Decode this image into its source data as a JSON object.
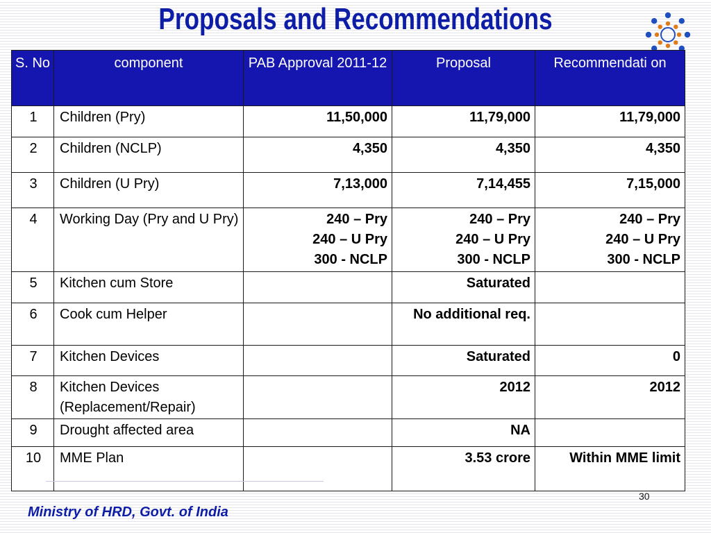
{
  "title": "Proposals and Recommendations",
  "table": {
    "headers": {
      "sno": "S. No",
      "component": "component",
      "pab": "PAB Approval 2011-12",
      "proposal": "Proposal",
      "recommendation": "Recommendati on"
    },
    "rows": [
      {
        "sno": "1",
        "component": "Children (Pry)",
        "pab": "11,50,000",
        "proposal": "11,79,000",
        "recommendation": "11,79,000"
      },
      {
        "sno": "2",
        "component": "Children (NCLP)",
        "pab": "4,350",
        "proposal": "4,350",
        "recommendation": "4,350"
      },
      {
        "sno": "3",
        "component": "Children (U Pry)",
        "pab": "7,13,000",
        "proposal": "7,14,455",
        "recommendation": "7,15,000"
      },
      {
        "sno": "4",
        "component": "Working Day (Pry and U Pry)",
        "pab": [
          "240 – Pry",
          "240 – U Pry",
          "300 - NCLP"
        ],
        "proposal": [
          "240 – Pry",
          "240 – U Pry",
          "300 - NCLP"
        ],
        "recommendation": [
          "240 – Pry",
          "240 – U Pry",
          "300 - NCLP"
        ]
      },
      {
        "sno": "5",
        "component": "Kitchen cum Store",
        "pab": "",
        "proposal": "Saturated",
        "recommendation": ""
      },
      {
        "sno": "6",
        "component": "Cook cum Helper",
        "pab": "",
        "proposal": "No additional req.",
        "recommendation": ""
      },
      {
        "sno": "7",
        "component": "Kitchen Devices",
        "pab": "",
        "proposal": "Saturated",
        "recommendation": "0"
      },
      {
        "sno": "8",
        "component": "Kitchen Devices (Replacement/Repair)",
        "pab": "",
        "proposal": "2012",
        "recommendation": "2012"
      },
      {
        "sno": "9",
        "component": "Drought affected area",
        "pab": "",
        "proposal": "NA",
        "recommendation": ""
      },
      {
        "sno": "10",
        "component": "MME Plan",
        "pab": "",
        "proposal": "3.53 crore",
        "recommendation": "Within MME limit"
      }
    ]
  },
  "footer": "Ministry of HRD, Govt. of India",
  "page_number": "30",
  "logo": {
    "icon": "people-circle-logo-icon",
    "colors": [
      "#1f4fbf",
      "#e07b1a"
    ]
  }
}
